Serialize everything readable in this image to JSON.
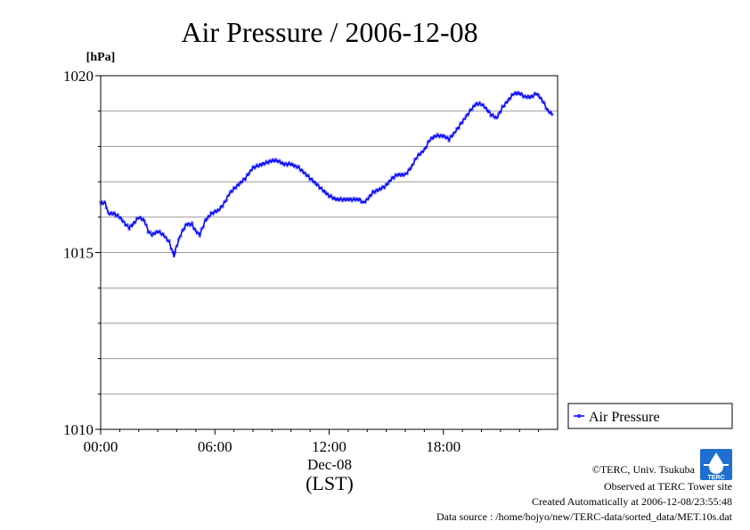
{
  "chart_data": {
    "type": "line",
    "title": "Air Pressure / 2006-12-08",
    "ylabel_unit": "[hPa]",
    "ylim": [
      1010,
      1020
    ],
    "y_ticks": [
      1010,
      1015,
      1020
    ],
    "y_tick_labels": [
      "1010",
      "1015",
      "1020"
    ],
    "xlim_hours": [
      0,
      24
    ],
    "x_ticks_hours": [
      0,
      6,
      12,
      18
    ],
    "x_tick_labels": [
      "00:00",
      "06:00",
      "12:00",
      "18:00"
    ],
    "x_date_label": "Dec-08",
    "x_axis_label": "(LST)",
    "grid": true,
    "legend_position": "right",
    "series": [
      {
        "name": "Air Pressure",
        "color": "#0000ff",
        "points": [
          [
            0.0,
            1016.4
          ],
          [
            0.25,
            1016.4
          ],
          [
            0.4,
            1016.1
          ],
          [
            0.7,
            1016.1
          ],
          [
            1.0,
            1016.0
          ],
          [
            1.3,
            1015.8
          ],
          [
            1.5,
            1015.7
          ],
          [
            1.7,
            1015.8
          ],
          [
            2.0,
            1016.0
          ],
          [
            2.3,
            1015.9
          ],
          [
            2.5,
            1015.6
          ],
          [
            2.7,
            1015.5
          ],
          [
            3.0,
            1015.6
          ],
          [
            3.3,
            1015.5
          ],
          [
            3.6,
            1015.3
          ],
          [
            3.85,
            1014.9
          ],
          [
            4.0,
            1015.2
          ],
          [
            4.2,
            1015.5
          ],
          [
            4.5,
            1015.8
          ],
          [
            4.8,
            1015.8
          ],
          [
            5.0,
            1015.6
          ],
          [
            5.2,
            1015.5
          ],
          [
            5.5,
            1015.9
          ],
          [
            5.8,
            1016.1
          ],
          [
            6.2,
            1016.2
          ],
          [
            6.5,
            1016.4
          ],
          [
            6.8,
            1016.7
          ],
          [
            7.2,
            1016.9
          ],
          [
            7.6,
            1017.1
          ],
          [
            8.0,
            1017.4
          ],
          [
            8.5,
            1017.5
          ],
          [
            9.0,
            1017.6
          ],
          [
            9.3,
            1017.6
          ],
          [
            9.6,
            1017.5
          ],
          [
            10.0,
            1017.5
          ],
          [
            10.4,
            1017.4
          ],
          [
            10.8,
            1017.2
          ],
          [
            11.2,
            1017.0
          ],
          [
            11.6,
            1016.8
          ],
          [
            12.0,
            1016.6
          ],
          [
            12.4,
            1016.5
          ],
          [
            12.8,
            1016.5
          ],
          [
            13.2,
            1016.5
          ],
          [
            13.6,
            1016.5
          ],
          [
            13.8,
            1016.4
          ],
          [
            14.0,
            1016.5
          ],
          [
            14.3,
            1016.7
          ],
          [
            14.7,
            1016.8
          ],
          [
            15.0,
            1016.9
          ],
          [
            15.3,
            1017.1
          ],
          [
            15.6,
            1017.2
          ],
          [
            16.0,
            1017.2
          ],
          [
            16.3,
            1017.4
          ],
          [
            16.6,
            1017.7
          ],
          [
            17.0,
            1017.9
          ],
          [
            17.3,
            1018.2
          ],
          [
            17.6,
            1018.3
          ],
          [
            18.0,
            1018.3
          ],
          [
            18.3,
            1018.2
          ],
          [
            18.6,
            1018.4
          ],
          [
            19.0,
            1018.7
          ],
          [
            19.4,
            1019.0
          ],
          [
            19.7,
            1019.2
          ],
          [
            20.0,
            1019.2
          ],
          [
            20.2,
            1019.1
          ],
          [
            20.5,
            1018.9
          ],
          [
            20.8,
            1018.8
          ],
          [
            21.1,
            1019.1
          ],
          [
            21.4,
            1019.3
          ],
          [
            21.7,
            1019.5
          ],
          [
            22.0,
            1019.5
          ],
          [
            22.3,
            1019.4
          ],
          [
            22.6,
            1019.4
          ],
          [
            22.9,
            1019.5
          ],
          [
            23.2,
            1019.3
          ],
          [
            23.5,
            1019.0
          ],
          [
            23.75,
            1018.9
          ]
        ]
      }
    ]
  },
  "footer": {
    "copyright": "©TERC, Univ. Tsukuba",
    "observed": "Observed at TERC Tower site",
    "created": "Created Automatically at 2006-12-08/23:55:48",
    "source": "Data source : /home/hojyo/new/TERC-data/sorted_data/MET.10s.dat",
    "logo_text": "TERC"
  },
  "colors": {
    "line": "#0000ff",
    "grid": "#999999",
    "logo": "#1e6fd0"
  }
}
